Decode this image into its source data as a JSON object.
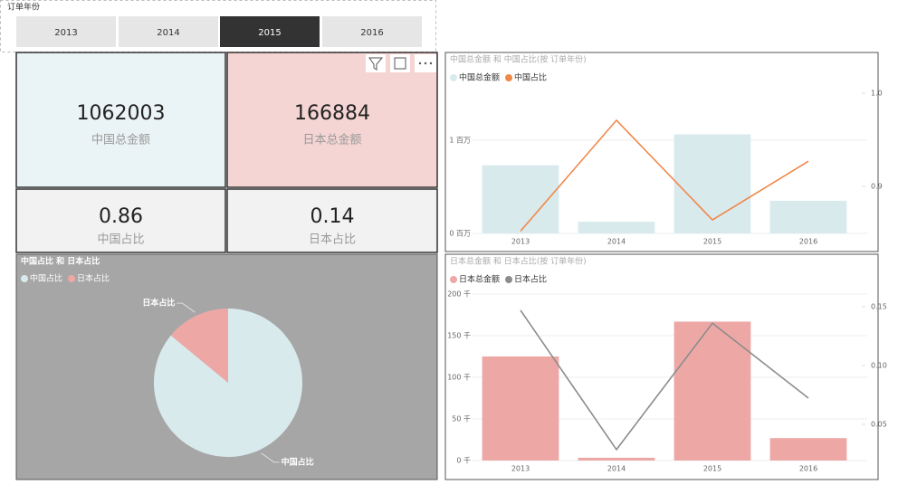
{
  "slicer": {
    "title": "订单年份",
    "options": [
      "2013",
      "2014",
      "2015",
      "2016"
    ],
    "selected": "2015"
  },
  "cards": [
    {
      "value": 1062003,
      "label": "中国总金额",
      "color": "#eaf3f5"
    },
    {
      "value": 166884,
      "label": "日本总金额",
      "color": "#f5d5d3"
    },
    {
      "value": 0.86,
      "label": "中国占比",
      "color": "#f2f2f2"
    },
    {
      "value": 0.14,
      "label": "日本占比",
      "color": "#f2f2f2"
    }
  ],
  "chart_data": [
    {
      "type": "combo",
      "title": "中国总金额 和 中国占比(按 订单年份)",
      "categories": [
        "2013",
        "2014",
        "2015",
        "2016"
      ],
      "series": [
        {
          "name": "中国总金额",
          "color": "#d9eaed",
          "kind": "bar",
          "values": [
            730000,
            126000,
            1062003,
            350000
          ]
        },
        {
          "name": "中国占比",
          "color": "#f0884a",
          "kind": "line",
          "axis": "y2",
          "values": [
            0.852,
            0.971,
            0.864,
            0.927
          ]
        }
      ],
      "ylim": [
        0,
        1580000
      ],
      "yticks": [
        {
          "value": 0,
          "label": "0 百万"
        },
        {
          "value": 1000000,
          "label": "1 百万"
        }
      ],
      "y2lim": [
        0.8495,
        1.0078
      ],
      "y2ticks": [
        0.9,
        {
          "value": 1,
          "label": "1.0"
        }
      ],
      "grid": true
    },
    {
      "type": "pie",
      "title": "中国占比 和 日本占比",
      "categories": [
        "中国占比",
        "日本占比"
      ],
      "values": [
        0.86,
        0.14
      ],
      "colors": [
        "#d9eaed",
        "#eda8a6"
      ]
    },
    {
      "type": "combo",
      "title": "日本总金额 和 日本占比(按 订单年份)",
      "categories": [
        "2013",
        "2014",
        "2015",
        "2016"
      ],
      "series": [
        {
          "name": "日本总金额",
          "color": "#eda8a6",
          "kind": "bar",
          "values": [
            125000,
            3300,
            166884,
            27000
          ]
        },
        {
          "name": "日本占比",
          "color": "#8c8c8c",
          "kind": "line",
          "axis": "y2",
          "values": [
            0.147,
            0.0285,
            0.136,
            0.0723
          ]
        }
      ],
      "ylim": [
        0,
        200000
      ],
      "yticks": [
        {
          "value": 0,
          "label": "0 千"
        },
        {
          "value": 50000,
          "label": "50 千"
        },
        {
          "value": 100000,
          "label": "100 千"
        },
        {
          "value": 150000,
          "label": "150 千"
        },
        {
          "value": 200000,
          "label": "200 千"
        }
      ],
      "y2lim": [
        0.0192,
        0.1608
      ],
      "y2ticks": [
        0.05,
        {
          "value": 0.1,
          "label": "0.10"
        },
        0.15
      ],
      "grid": true
    }
  ]
}
